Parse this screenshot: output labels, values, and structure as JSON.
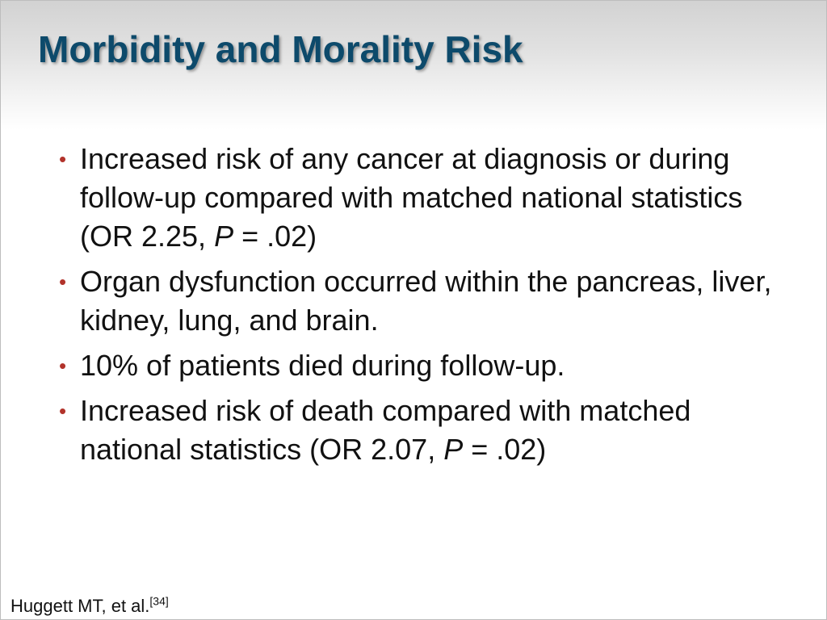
{
  "slide": {
    "title": "Morbidity and Morality Risk",
    "bullets": [
      {
        "parts": [
          {
            "text": "Increased risk of any cancer at diagnosis or during follow-up compared with matched national statistics (OR 2.25, ",
            "italic": false
          },
          {
            "text": "P",
            "italic": true
          },
          {
            "text": " = .02)",
            "italic": false
          }
        ]
      },
      {
        "parts": [
          {
            "text": "Organ dysfunction occurred within the pancreas, liver, kidney, lung, and brain.",
            "italic": false
          }
        ]
      },
      {
        "parts": [
          {
            "text": "10% of patients died during follow-up.",
            "italic": false
          }
        ]
      },
      {
        "parts": [
          {
            "text": "Increased risk of death compared with matched national statistics (OR 2.07, ",
            "italic": false
          },
          {
            "text": "P",
            "italic": true
          },
          {
            "text": " = .02)",
            "italic": false
          }
        ]
      }
    ],
    "bullet_glyph": "•",
    "citation": {
      "text": "Huggett MT, et al.",
      "reference": "[34]"
    }
  },
  "colors": {
    "title": "#0d4a6b",
    "bullet": "#b2332b",
    "text": "#111111"
  }
}
